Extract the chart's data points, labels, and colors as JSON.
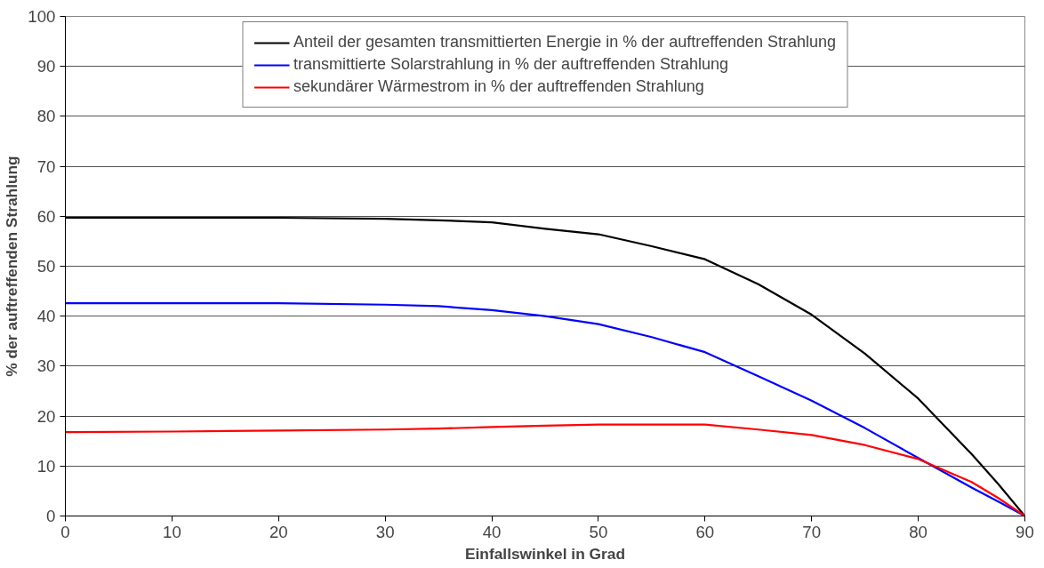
{
  "chart_data": {
    "type": "line",
    "xlabel": "Einfallswinkel in Grad",
    "ylabel": "% der auftreffenden Strahlung",
    "x": [
      0,
      10,
      20,
      30,
      35,
      40,
      45,
      50,
      55,
      60,
      65,
      70,
      75,
      80,
      85,
      87.5,
      90
    ],
    "series": [
      {
        "name": "Anteil der gesamten transmittierten Energie in % der auftreffenden Strahlung",
        "color": "#000000",
        "values": [
          59.7,
          59.7,
          59.7,
          59.5,
          59.2,
          58.8,
          57.5,
          56.4,
          54,
          51.4,
          46.4,
          40.3,
          32.5,
          23.5,
          12.4,
          6.4,
          0
        ]
      },
      {
        "name": "transmittierte Solarstrahlung in % der auftreffenden Strahlung",
        "color": "#0000ff",
        "values": [
          42.6,
          42.6,
          42.6,
          42.3,
          42,
          41.2,
          40,
          38.4,
          35.8,
          32.8,
          28,
          23.1,
          17.6,
          11.6,
          5.7,
          2.9,
          0
        ]
      },
      {
        "name": "sekundärer Wärmestrom in % der auftreffenden Strahlung",
        "color": "#ff0000",
        "values": [
          16.8,
          16.9,
          17.1,
          17.3,
          17.5,
          17.8,
          18.1,
          18.3,
          18.3,
          18.3,
          17.3,
          16.2,
          14.2,
          11.4,
          6.8,
          3.6,
          0
        ]
      }
    ],
    "xlim": [
      0,
      90
    ],
    "xticks": [
      0,
      10,
      20,
      30,
      40,
      50,
      60,
      70,
      80,
      90
    ],
    "ylim": [
      0,
      100
    ],
    "yticks": [
      0,
      10,
      20,
      30,
      40,
      50,
      60,
      70,
      80,
      90,
      100
    ],
    "grid": "y",
    "legend": "top",
    "marker": "none",
    "line_style": "solid"
  }
}
